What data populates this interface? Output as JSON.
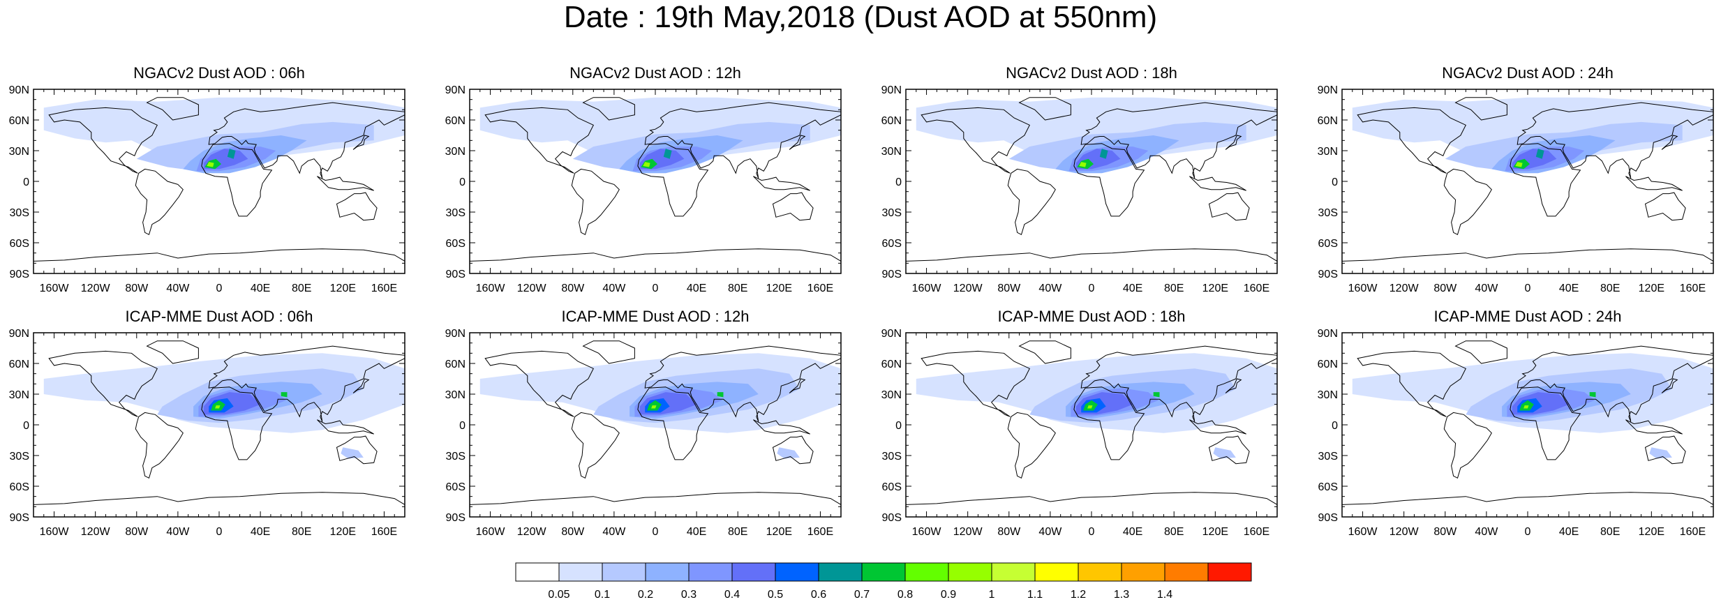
{
  "title": "Date : 19th May,2018 (Dust AOD at 550nm)",
  "panels": [
    {
      "title": "NGACv2 Dust AOD : 06h",
      "model": "NGACv2",
      "hour": "06h"
    },
    {
      "title": "NGACv2 Dust AOD : 12h",
      "model": "NGACv2",
      "hour": "12h"
    },
    {
      "title": "NGACv2 Dust AOD : 18h",
      "model": "NGACv2",
      "hour": "18h"
    },
    {
      "title": "NGACv2 Dust AOD : 24h",
      "model": "NGACv2",
      "hour": "24h"
    },
    {
      "title": "ICAP-MME Dust AOD : 06h",
      "model": "ICAP-MME",
      "hour": "06h"
    },
    {
      "title": "ICAP-MME Dust AOD : 12h",
      "model": "ICAP-MME",
      "hour": "12h"
    },
    {
      "title": "ICAP-MME Dust AOD : 18h",
      "model": "ICAP-MME",
      "hour": "18h"
    },
    {
      "title": "ICAP-MME Dust AOD : 24h",
      "model": "ICAP-MME",
      "hour": "24h"
    }
  ],
  "chart_data": {
    "type": "heatmap",
    "title": "Date : 19th May,2018 (Dust AOD at 550nm)",
    "x_ticks": [
      "160W",
      "120W",
      "80W",
      "40W",
      "0",
      "40E",
      "80E",
      "120E",
      "160E"
    ],
    "x_tick_values": [
      -160,
      -120,
      -80,
      -40,
      0,
      40,
      80,
      120,
      160
    ],
    "y_ticks": [
      "90N",
      "60N",
      "30N",
      "0",
      "30S",
      "60S",
      "90S"
    ],
    "y_tick_values": [
      90,
      60,
      30,
      0,
      -30,
      -60,
      -90
    ],
    "xlim": [
      -180,
      180
    ],
    "ylim": [
      -90,
      90
    ],
    "colorbar": {
      "levels": [
        "0.05",
        "0.1",
        "0.2",
        "0.3",
        "0.4",
        "0.5",
        "0.6",
        "0.7",
        "0.8",
        "0.9",
        "1",
        "1.1",
        "1.2",
        "1.3",
        "1.4"
      ],
      "colors": [
        "#ffffff",
        "#d6e2ff",
        "#b5c9ff",
        "#8eb2ff",
        "#7f96ff",
        "#6370f8",
        "#0063ff",
        "#009696",
        "#00c633",
        "#63ff00",
        "#96ff00",
        "#c6ff33",
        "#ffff00",
        "#ffc600",
        "#ffa000",
        "#ff7c00",
        "#ff1900"
      ]
    },
    "rows": [
      {
        "model": "NGACv2",
        "hours": [
          "06h",
          "12h",
          "18h",
          "24h"
        ]
      },
      {
        "model": "ICAP-MME",
        "hours": [
          "06h",
          "12h",
          "18h",
          "24h"
        ]
      }
    ]
  }
}
